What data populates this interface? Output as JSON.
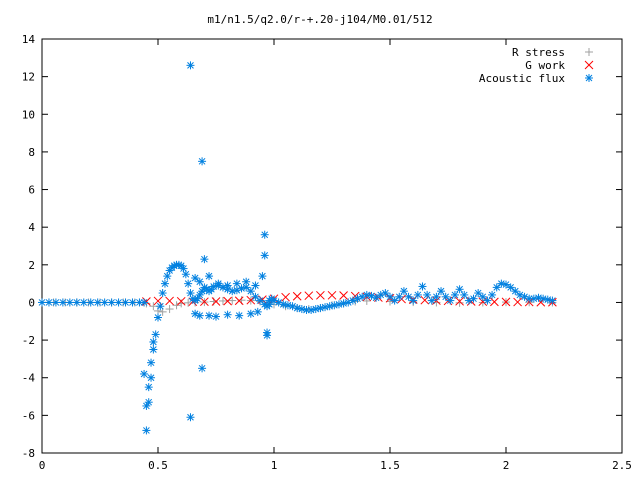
{
  "chart_data": {
    "type": "scatter",
    "title": "m1/n1.5/q2.0/r-+.20-j104/M0.01/512",
    "xlabel": "",
    "ylabel": "",
    "xlim": [
      0,
      2.5
    ],
    "ylim": [
      -8,
      14
    ],
    "xticks": [
      "0",
      "0.5",
      "1",
      "1.5",
      "2",
      "2.5"
    ],
    "yticks": [
      "-8",
      "-6",
      "-4",
      "-2",
      "0",
      "2",
      "4",
      "6",
      "8",
      "10",
      "12",
      "14"
    ],
    "grid": false,
    "legend_position": "top-right",
    "series": [
      {
        "name": "R stress",
        "marker": "+",
        "color": "#a0a0a0",
        "x": [
          0.0,
          0.05,
          0.1,
          0.15,
          0.2,
          0.25,
          0.3,
          0.35,
          0.4,
          0.45,
          0.48,
          0.5,
          0.52,
          0.55,
          0.58,
          0.6,
          0.63,
          0.66,
          0.7,
          0.74,
          0.78,
          0.82,
          0.86,
          0.9,
          0.94,
          0.98,
          1.0,
          1.05,
          1.1,
          1.15,
          1.2,
          1.25,
          1.3,
          1.35,
          1.4,
          1.5,
          1.6,
          1.7,
          1.8,
          1.9,
          2.0,
          2.1,
          2.2
        ],
        "y": [
          0,
          0,
          0,
          0,
          0,
          0,
          0,
          0,
          0,
          -0.05,
          -0.2,
          -0.45,
          -0.5,
          -0.35,
          -0.15,
          -0.05,
          -0.02,
          0,
          0.02,
          0.05,
          0.08,
          0.1,
          0.12,
          0.1,
          0.05,
          0,
          -0.1,
          -0.2,
          -0.3,
          -0.35,
          -0.3,
          -0.15,
          -0.05,
          0.05,
          0.08,
          0.05,
          0.02,
          0,
          -0.02,
          0,
          0.02,
          0.01,
          0
        ]
      },
      {
        "name": "G work",
        "marker": "x",
        "color": "#ff0000",
        "x": [
          0.45,
          0.5,
          0.55,
          0.6,
          0.65,
          0.7,
          0.75,
          0.8,
          0.85,
          0.9,
          0.95,
          1.0,
          1.05,
          1.1,
          1.15,
          1.2,
          1.25,
          1.3,
          1.35,
          1.4,
          1.45,
          1.5,
          1.55,
          1.6,
          1.65,
          1.7,
          1.75,
          1.8,
          1.85,
          1.9,
          1.95,
          2.0,
          2.05,
          2.1,
          2.15,
          2.2
        ],
        "y": [
          0.05,
          0.08,
          0.08,
          0.06,
          0.04,
          0.04,
          0.05,
          0.07,
          0.09,
          0.12,
          0.15,
          0.2,
          0.28,
          0.33,
          0.36,
          0.38,
          0.38,
          0.37,
          0.34,
          0.3,
          0.26,
          0.22,
          0.18,
          0.15,
          0.12,
          0.1,
          0.08,
          0.06,
          0.05,
          0.04,
          0.03,
          0.03,
          0.02,
          0.02,
          0.01,
          0.01
        ]
      },
      {
        "name": "Acoustic flux",
        "marker": "*",
        "color": "#0080e0",
        "x": [
          0.0,
          0.03,
          0.06,
          0.09,
          0.12,
          0.15,
          0.18,
          0.21,
          0.24,
          0.27,
          0.3,
          0.33,
          0.36,
          0.39,
          0.42,
          0.44,
          0.44,
          0.45,
          0.45,
          0.46,
          0.46,
          0.47,
          0.47,
          0.48,
          0.48,
          0.49,
          0.5,
          0.51,
          0.52,
          0.53,
          0.54,
          0.55,
          0.56,
          0.57,
          0.58,
          0.59,
          0.6,
          0.61,
          0.62,
          0.63,
          0.64,
          0.65,
          0.66,
          0.67,
          0.68,
          0.69,
          0.7,
          0.71,
          0.72,
          0.73,
          0.74,
          0.76,
          0.78,
          0.8,
          0.82,
          0.84,
          0.86,
          0.88,
          0.9,
          0.92,
          0.94,
          0.96,
          0.97,
          0.98,
          0.98,
          0.99,
          1.0,
          1.02,
          1.04,
          1.06,
          1.08,
          1.1,
          1.12,
          1.14,
          1.16,
          1.18,
          1.2,
          1.22,
          1.24,
          1.26,
          1.28,
          1.3,
          1.32,
          1.34,
          1.36,
          1.38,
          1.4,
          1.42,
          1.44,
          1.46,
          1.48,
          1.5,
          1.52,
          1.54,
          1.56,
          1.58,
          1.6,
          1.62,
          1.64,
          1.66,
          1.68,
          1.7,
          1.72,
          1.74,
          1.76,
          1.78,
          1.8,
          1.82,
          1.84,
          1.86,
          1.88,
          1.9,
          1.92,
          1.94,
          1.96,
          1.98,
          2.0,
          2.02,
          2.04,
          2.06,
          2.08,
          2.1,
          2.12,
          2.14,
          2.16,
          2.18,
          2.2,
          0.64,
          0.64,
          0.69,
          0.69,
          0.7,
          0.96,
          0.96,
          0.97,
          0.97,
          0.66,
          0.68,
          0.72,
          0.75,
          0.8,
          0.85,
          0.9,
          0.93,
          0.66,
          0.68,
          0.72,
          0.76,
          0.8,
          0.84,
          0.88,
          0.92,
          0.95
        ],
        "y": [
          0,
          0,
          0,
          0,
          0,
          0,
          0,
          0,
          0,
          0,
          0,
          0,
          0,
          0,
          0,
          0,
          -3.8,
          -6.8,
          -5.5,
          -5.3,
          -4.5,
          -4.0,
          -3.2,
          -2.5,
          -2.1,
          -1.7,
          -0.8,
          -0.2,
          0.5,
          1.0,
          1.4,
          1.7,
          1.85,
          1.95,
          2.0,
          2.0,
          1.95,
          1.8,
          1.5,
          1.0,
          0.5,
          0.2,
          0.1,
          0.2,
          0.4,
          0.6,
          0.8,
          0.7,
          0.6,
          0.7,
          0.85,
          0.9,
          0.8,
          0.7,
          0.6,
          0.65,
          0.75,
          0.8,
          0.6,
          0.3,
          0.1,
          -0.1,
          -0.2,
          -0.1,
          0.1,
          0.2,
          0.1,
          0.0,
          -0.1,
          -0.15,
          -0.2,
          -0.3,
          -0.35,
          -0.4,
          -0.4,
          -0.35,
          -0.3,
          -0.25,
          -0.2,
          -0.15,
          -0.1,
          -0.05,
          0.0,
          0.1,
          0.2,
          0.3,
          0.4,
          0.35,
          0.25,
          0.4,
          0.5,
          0.3,
          0.1,
          0.3,
          0.6,
          0.3,
          0.1,
          0.4,
          0.85,
          0.4,
          0.1,
          0.3,
          0.6,
          0.3,
          0.1,
          0.4,
          0.7,
          0.4,
          0.1,
          0.2,
          0.5,
          0.3,
          0.1,
          0.4,
          0.8,
          1.0,
          0.95,
          0.8,
          0.6,
          0.4,
          0.3,
          0.2,
          0.2,
          0.25,
          0.2,
          0.15,
          0.1,
          12.6,
          -6.1,
          7.5,
          -3.5,
          2.3,
          3.6,
          2.5,
          -1.6,
          -1.75,
          -0.6,
          -0.7,
          -0.7,
          -0.75,
          -0.65,
          -0.7,
          -0.6,
          -0.5,
          1.3,
          1.1,
          1.4,
          1.0,
          0.9,
          1.0,
          1.1,
          0.9,
          1.4
        ]
      }
    ]
  }
}
